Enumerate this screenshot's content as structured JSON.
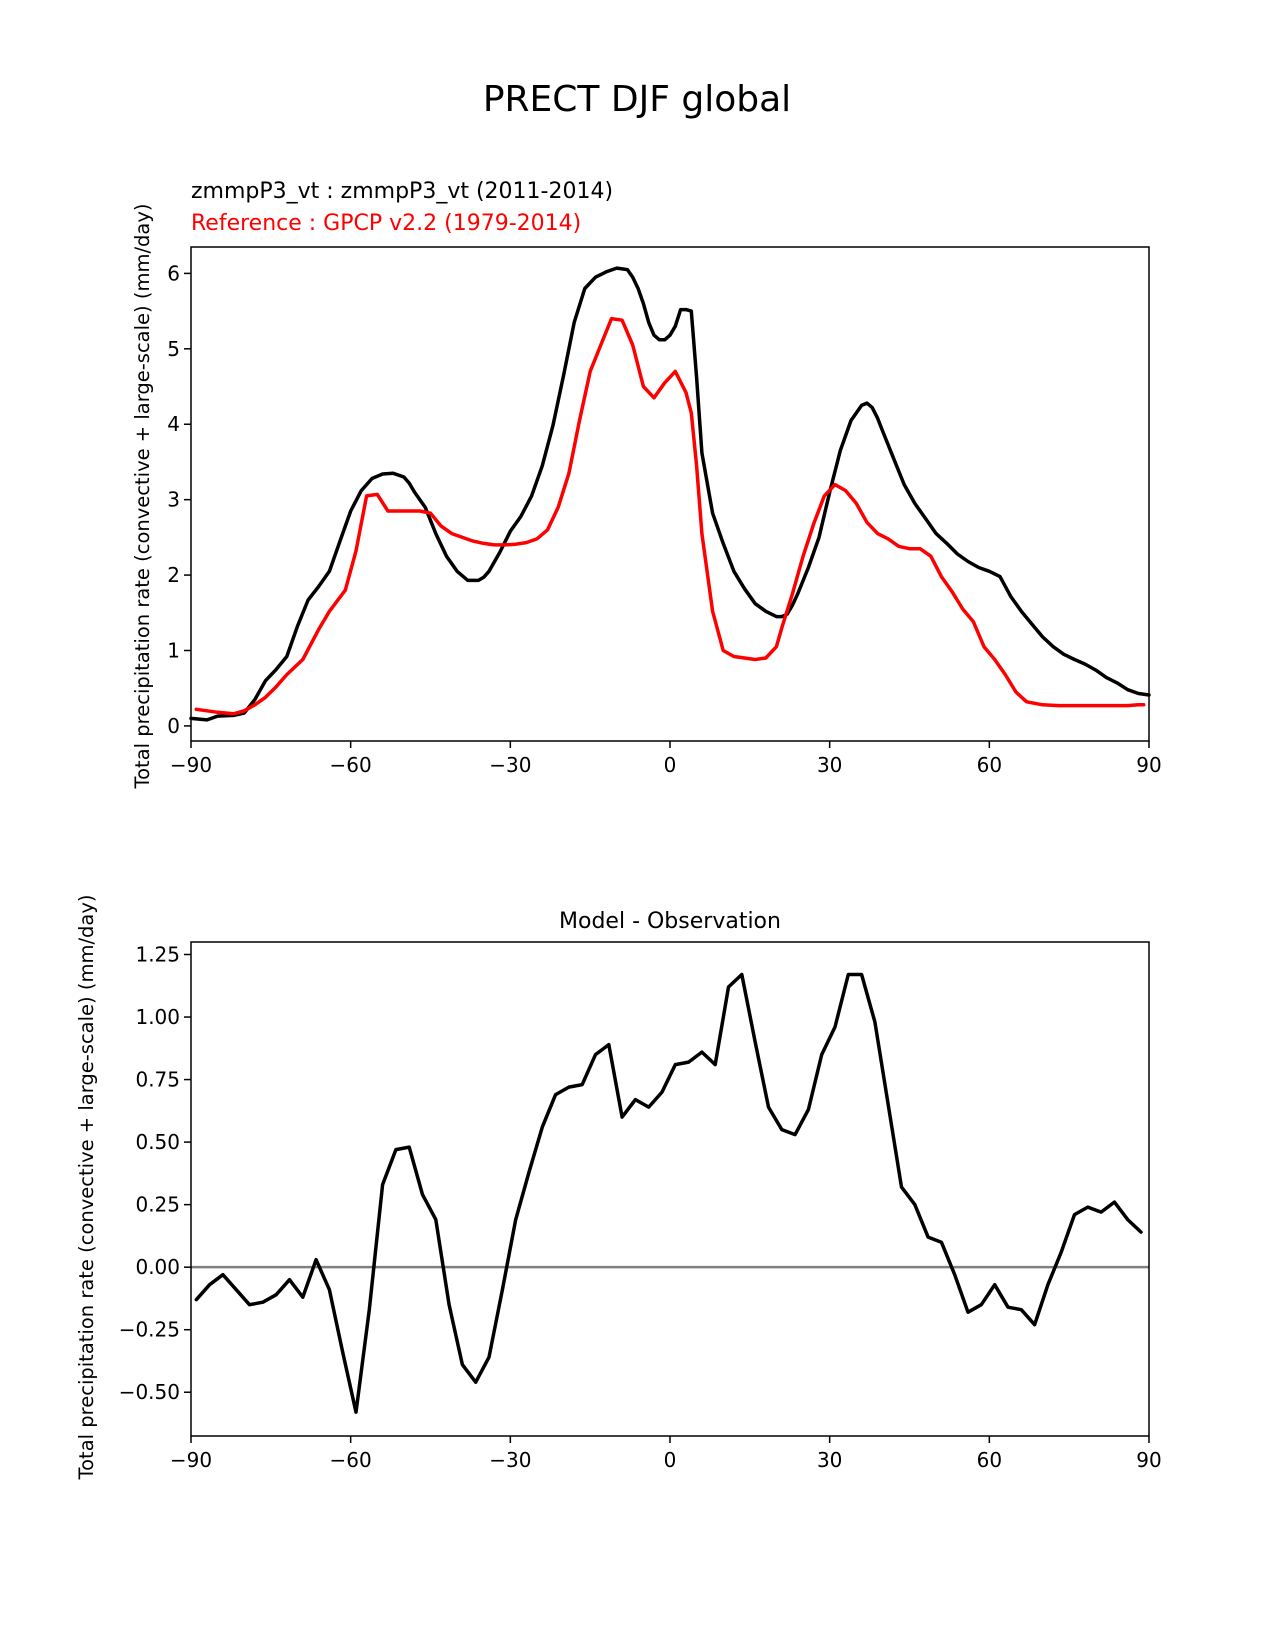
{
  "figure_title": "PRECT DJF global",
  "colors": {
    "model": "#000000",
    "reference": "#ff0000",
    "zero_line": "#808080"
  },
  "chart_data": [
    {
      "type": "line",
      "title_lines": [
        {
          "text": "zmmpP3_vt : zmmpP3_vt (2011-2014)",
          "color": "#000000"
        },
        {
          "text": "Reference : GPCP v2.2 (1979-2014)",
          "color": "#ff0000"
        }
      ],
      "xlabel": "",
      "ylabel": "Total precipitation rate (convective + large-scale) (mm/day)",
      "xlim": [
        -90,
        90
      ],
      "ylim": [
        -0.2,
        6.35
      ],
      "xticks": [
        -90,
        -60,
        -30,
        0,
        30,
        60,
        90
      ],
      "yticks": [
        0,
        1,
        2,
        3,
        4,
        5,
        6
      ],
      "ytick_labels": [
        "0",
        "1",
        "2",
        "3",
        "4",
        "5",
        "6"
      ],
      "series": [
        {
          "name": "zmmpP3_vt",
          "color": "#000000",
          "x": [
            -90,
            -87,
            -85,
            -82,
            -80,
            -78,
            -76,
            -74,
            -72,
            -70,
            -68,
            -66,
            -64,
            -62,
            -60,
            -58,
            -56,
            -54,
            -52,
            -50,
            -49,
            -48,
            -46,
            -44,
            -42,
            -40,
            -38,
            -36,
            -35,
            -34,
            -32,
            -30,
            -28,
            -26,
            -24,
            -22,
            -20,
            -18,
            -16,
            -14,
            -12,
            -10,
            -8,
            -7,
            -6,
            -5,
            -4,
            -3,
            -2,
            -1,
            0,
            1,
            2,
            3,
            4,
            5,
            6,
            8,
            10,
            12,
            14,
            16,
            18,
            20,
            21,
            22,
            23,
            24,
            26,
            28,
            30,
            32,
            34,
            36,
            37,
            38,
            39,
            40,
            42,
            44,
            46,
            48,
            50,
            52,
            54,
            56,
            58,
            60,
            62,
            64,
            66,
            68,
            70,
            72,
            74,
            76,
            78,
            80,
            82,
            84,
            86,
            88,
            90
          ],
          "values": [
            0.1,
            0.08,
            0.13,
            0.14,
            0.17,
            0.35,
            0.6,
            0.75,
            0.92,
            1.32,
            1.67,
            1.85,
            2.05,
            2.45,
            2.85,
            3.12,
            3.28,
            3.34,
            3.35,
            3.3,
            3.22,
            3.1,
            2.9,
            2.55,
            2.25,
            2.05,
            1.93,
            1.93,
            1.97,
            2.05,
            2.3,
            2.58,
            2.78,
            3.05,
            3.45,
            3.98,
            4.65,
            5.35,
            5.8,
            5.95,
            6.02,
            6.07,
            6.05,
            5.95,
            5.8,
            5.6,
            5.35,
            5.18,
            5.12,
            5.12,
            5.18,
            5.3,
            5.52,
            5.52,
            5.5,
            4.62,
            3.62,
            2.82,
            2.42,
            2.05,
            1.82,
            1.62,
            1.52,
            1.45,
            1.45,
            1.48,
            1.6,
            1.75,
            2.1,
            2.5,
            3.1,
            3.65,
            4.05,
            4.25,
            4.28,
            4.22,
            4.08,
            3.9,
            3.55,
            3.2,
            2.95,
            2.75,
            2.55,
            2.42,
            2.28,
            2.18,
            2.1,
            2.05,
            1.98,
            1.72,
            1.52,
            1.35,
            1.18,
            1.05,
            0.95,
            0.88,
            0.82,
            0.74,
            0.64,
            0.57,
            0.48,
            0.43,
            0.41
          ]
        },
        {
          "name": "Reference : GPCP v2.2 (1979-2014)",
          "color": "#ff0000",
          "x": [
            -89,
            -85,
            -82,
            -80,
            -78,
            -76,
            -74,
            -72,
            -69,
            -66,
            -64,
            -61,
            -59,
            -57,
            -55,
            -53,
            -51,
            -49,
            -47,
            -45,
            -43,
            -41,
            -39,
            -37,
            -35,
            -33,
            -31,
            -29,
            -27,
            -25,
            -23,
            -21,
            -19,
            -17,
            -15,
            -13,
            -11,
            -9,
            -7,
            -5,
            -3,
            -1,
            1,
            3,
            4,
            5,
            6,
            8,
            10,
            12,
            14,
            16,
            18,
            20,
            21,
            23,
            25,
            27,
            29,
            31,
            33,
            35,
            37,
            39,
            41,
            43,
            45,
            47,
            49,
            51,
            53,
            55,
            57,
            59,
            61,
            63,
            65,
            67,
            70,
            73,
            76,
            79,
            81,
            84,
            86,
            88,
            89
          ],
          "values": [
            0.22,
            0.18,
            0.16,
            0.2,
            0.28,
            0.38,
            0.52,
            0.68,
            0.88,
            1.28,
            1.52,
            1.8,
            2.32,
            3.05,
            3.07,
            2.85,
            2.85,
            2.85,
            2.85,
            2.82,
            2.65,
            2.55,
            2.5,
            2.45,
            2.42,
            2.4,
            2.4,
            2.41,
            2.43,
            2.48,
            2.6,
            2.9,
            3.35,
            4.05,
            4.7,
            5.05,
            5.4,
            5.38,
            5.05,
            4.5,
            4.35,
            4.55,
            4.7,
            4.42,
            4.15,
            3.45,
            2.55,
            1.52,
            1.0,
            0.92,
            0.9,
            0.88,
            0.9,
            1.05,
            1.3,
            1.75,
            2.25,
            2.68,
            3.05,
            3.2,
            3.12,
            2.95,
            2.7,
            2.55,
            2.48,
            2.38,
            2.35,
            2.35,
            2.25,
            1.98,
            1.78,
            1.55,
            1.38,
            1.05,
            0.88,
            0.68,
            0.45,
            0.32,
            0.28,
            0.27,
            0.27,
            0.27,
            0.27,
            0.27,
            0.27,
            0.28,
            0.28
          ]
        }
      ]
    },
    {
      "type": "line",
      "title": "Model - Observation",
      "xlabel": "",
      "ylabel": "Total precipitation rate (convective + large-scale) (mm/day)",
      "xlim": [
        -90,
        90
      ],
      "ylim": [
        -0.675,
        1.3
      ],
      "xticks": [
        -90,
        -60,
        -30,
        0,
        30,
        60,
        90
      ],
      "yticks": [
        -0.5,
        -0.25,
        0,
        0.25,
        0.5,
        0.75,
        1.0,
        1.25
      ],
      "ytick_labels": [
        "−0.50",
        "−0.25",
        "0.00",
        "0.25",
        "0.50",
        "0.75",
        "1.00",
        "1.25"
      ],
      "zero_line": 0,
      "series": [
        {
          "name": "Model - Observation",
          "color": "#000000",
          "x": [
            -89,
            -86.5,
            -84,
            -81.5,
            -79,
            -76.5,
            -74,
            -71.5,
            -69,
            -66.5,
            -64,
            -61.5,
            -59,
            -56.5,
            -54,
            -51.5,
            -49,
            -46.5,
            -44,
            -41.5,
            -39,
            -36.5,
            -34,
            -31.5,
            -29,
            -26.5,
            -24,
            -21.5,
            -19,
            -16.5,
            -14,
            -11.5,
            -9,
            -6.5,
            -4,
            -1.5,
            1,
            3.5,
            6,
            8.5,
            11,
            13.5,
            16,
            18.5,
            21,
            23.5,
            26,
            28.5,
            31,
            33.5,
            36,
            38.5,
            41,
            43.5,
            46,
            48.5,
            51,
            53.5,
            56,
            58.5,
            61,
            63.5,
            66,
            68.5,
            71,
            73.5,
            76,
            78.5,
            81,
            83.5,
            86,
            88.5
          ],
          "values": [
            -0.13,
            -0.07,
            -0.03,
            -0.09,
            -0.15,
            -0.14,
            -0.11,
            -0.05,
            -0.12,
            0.03,
            -0.09,
            -0.34,
            -0.58,
            -0.17,
            0.33,
            0.47,
            0.48,
            0.29,
            0.19,
            -0.15,
            -0.39,
            -0.46,
            -0.36,
            -0.09,
            0.19,
            0.38,
            0.56,
            0.69,
            0.72,
            0.73,
            0.85,
            0.89,
            0.6,
            0.67,
            0.64,
            0.7,
            0.81,
            0.82,
            0.86,
            0.81,
            1.12,
            1.17,
            0.9,
            0.64,
            0.55,
            0.53,
            0.63,
            0.85,
            0.96,
            1.17,
            1.17,
            0.98,
            0.65,
            0.32,
            0.25,
            0.12,
            0.1,
            -0.03,
            -0.18,
            -0.15,
            -0.07,
            -0.16,
            -0.17,
            -0.23,
            -0.07,
            0.06,
            0.21,
            0.24,
            0.22,
            0.26,
            0.19,
            0.14
          ]
        }
      ]
    }
  ]
}
